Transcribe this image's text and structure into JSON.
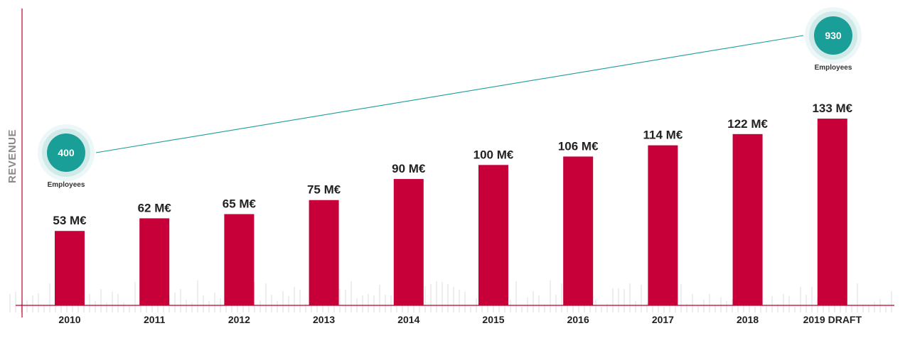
{
  "chart_data": {
    "type": "bar",
    "ylabel": "REVENUE",
    "categories": [
      "2010",
      "2011",
      "2012",
      "2013",
      "2014",
      "2015",
      "2016",
      "2017",
      "2018",
      "2019 DRAFT"
    ],
    "values": [
      53,
      62,
      65,
      75,
      90,
      100,
      106,
      114,
      122,
      133
    ],
    "value_labels": [
      "53 M€",
      "62 M€",
      "65 M€",
      "75 M€",
      "90 M€",
      "100 M€",
      "106 M€",
      "114 M€",
      "122 M€",
      "133 M€"
    ],
    "bar_color": "#c8003a",
    "axis_color": "#b8002f",
    "employees": {
      "start": {
        "value": "400",
        "label": "Employees",
        "category": "2010"
      },
      "end": {
        "value": "930",
        "label": "Employees",
        "category": "2019 DRAFT"
      },
      "color": "#1a9e98"
    }
  }
}
